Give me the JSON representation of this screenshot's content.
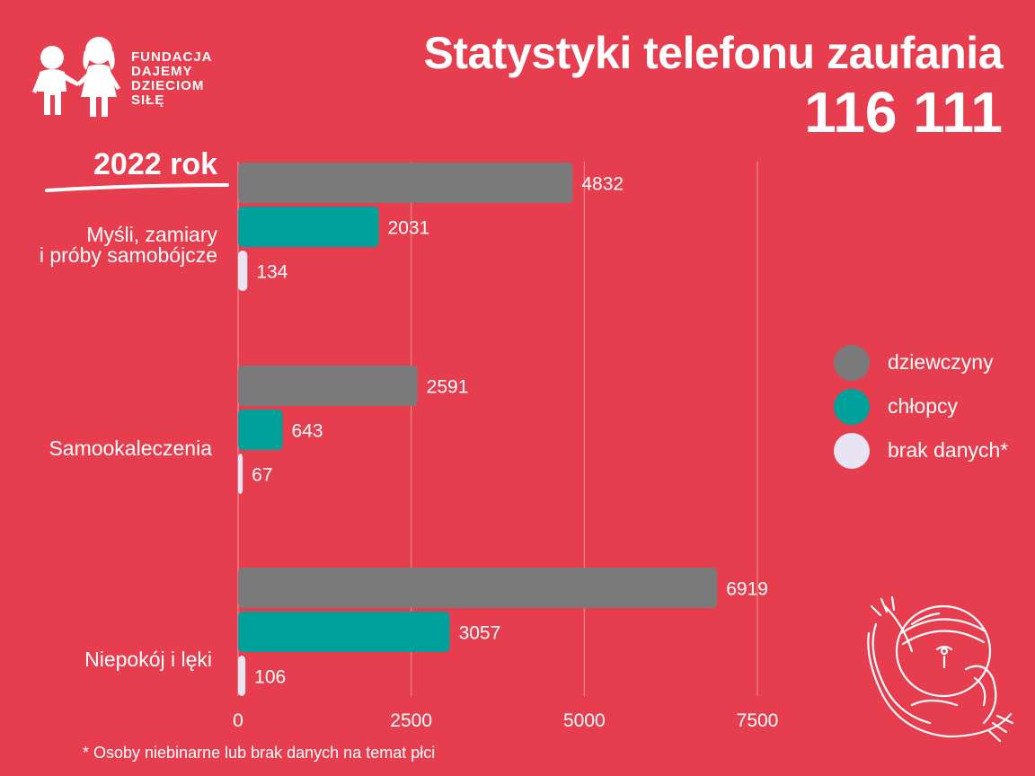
{
  "logo": {
    "lines": [
      "FUNDACJA",
      "DAJEMY",
      "DZIECIOM",
      "SIŁĘ"
    ]
  },
  "header": {
    "title": "Statystyki telefonu zaufania",
    "subtitle": "116 111",
    "year": "2022 rok"
  },
  "footnote": "* Osoby niebinarne lub brak danych na temat płci",
  "colors": {
    "background": "#e63e4e",
    "dziewczyny": "#7a7a7a",
    "chlopcy": "#00a19a",
    "brak_danych": "#e9e4f3"
  },
  "chart_data": {
    "type": "bar",
    "orientation": "horizontal",
    "categories": [
      "Myśli, zamiary\ni próby samobójcze",
      "Samookaleczenia",
      "Niepokój i lęki"
    ],
    "series": [
      {
        "name": "dziewczyny",
        "values": [
          4832,
          2591,
          6919
        ],
        "color": "#7a7a7a"
      },
      {
        "name": "chłopcy",
        "values": [
          2031,
          643,
          3057
        ],
        "color": "#00a19a"
      },
      {
        "name": "brak danych*",
        "values": [
          134,
          67,
          106
        ],
        "color": "#e9e4f3"
      }
    ],
    "xlim": [
      0,
      7500
    ],
    "xticks": [
      0,
      2500,
      5000,
      7500
    ],
    "grid": true,
    "legend": "right",
    "data_labels": true
  }
}
